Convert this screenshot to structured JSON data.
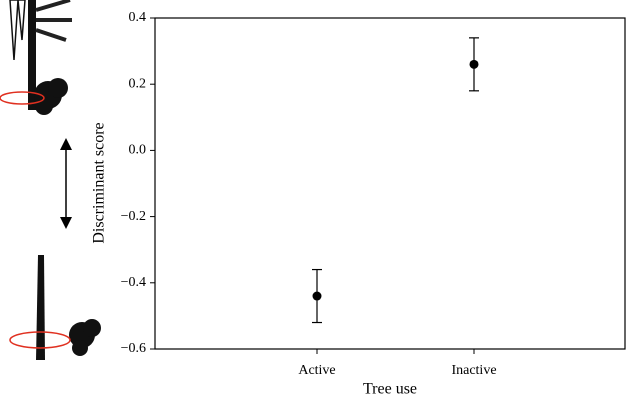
{
  "chart_data": {
    "type": "errorbar",
    "xlabel": "Tree use",
    "ylabel": "Discriminant score",
    "categories": [
      "Active",
      "Inactive"
    ],
    "values": [
      -0.44,
      0.26
    ],
    "errors": [
      0.08,
      0.08
    ],
    "color": "#000000",
    "ylim": [
      -0.6,
      0.4
    ],
    "yticks": [
      {
        "value": -0.6,
        "label": "−0.6"
      },
      {
        "value": -0.4,
        "label": "−0.4"
      },
      {
        "value": -0.2,
        "label": "−0.2"
      },
      {
        "value": 0,
        "label": "0.0"
      },
      0.2,
      0.4
    ]
  }
}
